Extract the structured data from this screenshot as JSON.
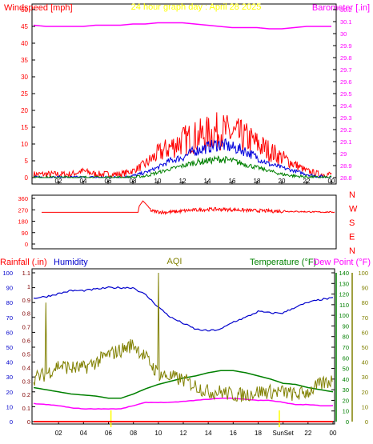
{
  "colors": {
    "wind": "#ff0000",
    "wind_avg": "#0000dd",
    "wind_low": "#008000",
    "baro": "#ff00ff",
    "title": "#ffff00",
    "dir": "#ff0000",
    "rain": "#ff0000",
    "humidity": "#0000cc",
    "aqi": "#808000",
    "temp": "#008000",
    "dew": "#ff00ff",
    "dark_red": "#800000",
    "sunrise": "#ffff00",
    "axis": "#000000",
    "grid": "#c0c0c0"
  },
  "chart_data": [
    {
      "type": "line",
      "title": "24 hour graph day : April 28 2025",
      "ylabel_left": "Windspeed [mph]",
      "ylabel_right": "Barometer [.in]",
      "x_ticks": [
        "02",
        "04",
        "06",
        "08",
        "10",
        "12",
        "14",
        "16",
        "18",
        "20",
        "22",
        "00"
      ],
      "ylim_left": [
        0,
        50
      ],
      "y_ticks_left": [
        "0",
        "5",
        "10",
        "15",
        "20",
        "25",
        "30",
        "35",
        "40",
        "45",
        "50"
      ],
      "ylim_right": [
        28.8,
        30.2
      ],
      "y_ticks_right": [
        "28.8",
        "28.9",
        "29",
        "29.1",
        "29.2",
        "29.3",
        "29.4",
        "29.5",
        "29.6",
        "29.7",
        "29.8",
        "29.9",
        "30",
        "30.1",
        "30.2"
      ],
      "hours": [
        0,
        1,
        2,
        3,
        4,
        5,
        6,
        7,
        8,
        9,
        10,
        11,
        12,
        13,
        14,
        15,
        16,
        17,
        18,
        19,
        20,
        21,
        22,
        23,
        24
      ],
      "series": [
        {
          "name": "Windspeed",
          "axis": "left",
          "values": [
            1,
            1,
            1,
            1,
            2,
            1,
            1,
            1,
            2,
            4,
            7,
            9,
            11,
            12,
            13,
            14,
            13,
            12,
            10,
            8,
            6,
            4,
            2,
            1,
            1
          ]
        },
        {
          "name": "Wind average",
          "axis": "left",
          "values": [
            0,
            0,
            0,
            0,
            0,
            0,
            0,
            0,
            0.5,
            1.5,
            3,
            5,
            6,
            8,
            9,
            10,
            9,
            8,
            6,
            4,
            3,
            2,
            1,
            0.3,
            0.2
          ]
        },
        {
          "name": "Wind low",
          "axis": "left",
          "values": [
            0,
            0,
            0,
            0,
            0,
            0,
            0,
            0,
            0,
            0.5,
            1.5,
            2.5,
            3.5,
            4.5,
            5,
            5.5,
            5,
            4,
            3,
            2,
            1,
            0.5,
            0.2,
            0,
            0
          ]
        },
        {
          "name": "Barometer",
          "axis": "right",
          "values": [
            30.07,
            30.06,
            30.06,
            30.06,
            30.06,
            30.07,
            30.07,
            30.07,
            30.08,
            30.08,
            30.09,
            30.09,
            30.09,
            30.08,
            30.07,
            30.06,
            30.05,
            30.05,
            30.05,
            30.04,
            30.04,
            30.05,
            30.06,
            30.06,
            30.06
          ]
        }
      ]
    },
    {
      "type": "line",
      "ylabel_right": "N W S E N",
      "compass_labels": [
        "N",
        "W",
        "S",
        "E",
        "N"
      ],
      "x_ticks": [],
      "ylim": [
        0,
        360
      ],
      "y_ticks": [
        "0",
        "90",
        "180",
        "270",
        "360"
      ],
      "hours": [
        0,
        1,
        2,
        3,
        4,
        5,
        6,
        7,
        7.9,
        8.0,
        8.3,
        8.7,
        9,
        10,
        11,
        12,
        13,
        14,
        15,
        16,
        17,
        18,
        19,
        20,
        21,
        22,
        23,
        24
      ],
      "series": [
        {
          "name": "Wind direction",
          "values": [
            250,
            250,
            250,
            250,
            250,
            250,
            250,
            250,
            250,
            300,
            340,
            300,
            260,
            250,
            255,
            265,
            270,
            275,
            272,
            270,
            265,
            262,
            260,
            258,
            256,
            254,
            252,
            252
          ]
        }
      ]
    },
    {
      "type": "line",
      "ylabel_left_1": "Rainfall (.in)",
      "ylabel_left_2": "Humidity",
      "label_center": "AQI",
      "ylabel_right_1": "Temperature (°F)",
      "ylabel_right_2": "Dew Point (°F)",
      "x_ticks": [
        "02",
        "04",
        "06",
        "08",
        "10",
        "12",
        "14",
        "16",
        "18",
        "SunSet",
        "22",
        "00"
      ],
      "ylim_humidity": [
        0,
        100
      ],
      "y_ticks_humidity": [
        "0",
        "10",
        "20",
        "30",
        "40",
        "50",
        "60",
        "70",
        "80",
        "90",
        "100"
      ],
      "ylim_rain": [
        0,
        1.1
      ],
      "y_ticks_rain": [
        "0",
        "0.1",
        "0.2",
        "0.3",
        "0.4",
        "0.5",
        "0.6",
        "0.7",
        "0.8",
        "0.9",
        "1",
        "1.1"
      ],
      "ylim_temp": [
        0,
        140
      ],
      "y_ticks_temp": [
        "0",
        "10",
        "20",
        "30",
        "40",
        "50",
        "60",
        "70",
        "80",
        "90",
        "100",
        "110",
        "120",
        "130",
        "140"
      ],
      "ylim_aqi": [
        0,
        100
      ],
      "y_ticks_aqi": [
        "0",
        "10",
        "20",
        "30",
        "40",
        "50",
        "60",
        "70",
        "80",
        "90",
        "100"
      ],
      "hours": [
        0,
        1,
        2,
        3,
        4,
        5,
        6,
        7,
        8,
        9,
        10,
        11,
        12,
        13,
        14,
        15,
        16,
        17,
        18,
        19,
        20,
        21,
        22,
        23,
        24
      ],
      "sunrise_hour": 6.2,
      "sunset_hour": 19.7,
      "series": [
        {
          "name": "Humidity",
          "values": [
            83,
            84,
            86,
            88,
            88,
            89,
            90,
            90,
            90,
            85,
            77,
            70,
            66,
            62,
            61,
            62,
            67,
            70,
            74,
            73,
            73,
            77,
            80,
            82,
            83
          ]
        },
        {
          "name": "AQI",
          "values": [
            29,
            32,
            38,
            36,
            36,
            40,
            45,
            48,
            52,
            43,
            32,
            30,
            28,
            24,
            20,
            20,
            18,
            18,
            20,
            20,
            20,
            18,
            20,
            25,
            28
          ]
        },
        {
          "name": "Temperature",
          "values": [
            32,
            30,
            28,
            26,
            25,
            24,
            22,
            22,
            26,
            31,
            35,
            38,
            41,
            43,
            46,
            48,
            48,
            46,
            43,
            40,
            36,
            35,
            32,
            30,
            28
          ]
        },
        {
          "name": "Dew Point",
          "values": [
            17,
            16,
            15,
            13,
            12,
            12,
            12,
            12,
            15,
            18,
            18,
            18,
            19,
            20,
            21,
            22,
            22,
            21,
            20,
            20,
            18,
            16,
            16,
            15,
            15
          ]
        },
        {
          "name": "Rainfall",
          "values": [
            0,
            0,
            0,
            0,
            0,
            0,
            0,
            0,
            0,
            0,
            0,
            0,
            0,
            0,
            0,
            0,
            0,
            0,
            0,
            0,
            0,
            0,
            0,
            0,
            0
          ]
        }
      ]
    }
  ]
}
